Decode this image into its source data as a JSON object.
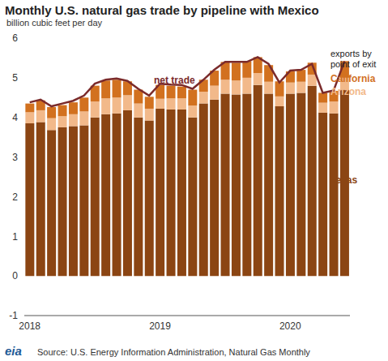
{
  "chart_data": {
    "type": "bar",
    "title": "Monthly U.S. natural gas trade by pipeline with Mexico",
    "subtitle": "billion cubic feet per day",
    "annotations": [
      "net trade",
      "exports by point of exit"
    ],
    "source": "Source: U.S. Energy Information Administration, Natural Gas Monthly",
    "logo": "eia",
    "stacked": true,
    "grid": false,
    "categories": [
      "2018",
      null,
      null,
      null,
      null,
      null,
      null,
      null,
      null,
      null,
      null,
      null,
      "2019",
      null,
      null,
      null,
      null,
      null,
      null,
      null,
      null,
      null,
      null,
      null,
      "2020",
      null,
      null,
      null,
      null,
      null
    ],
    "series": [
      {
        "name": "Texas",
        "color": "#8b4513",
        "type": "bar",
        "values": [
          3.85,
          3.88,
          3.68,
          3.75,
          3.78,
          3.8,
          4.0,
          4.08,
          4.1,
          4.18,
          4.0,
          3.92,
          4.22,
          4.2,
          4.2,
          4.0,
          4.35,
          4.45,
          4.6,
          4.58,
          4.6,
          4.82,
          4.6,
          4.28,
          4.6,
          4.62,
          4.8,
          4.12,
          4.1,
          4.7
        ]
      },
      {
        "name": "Arizona",
        "color": "#f2b98a",
        "type": "bar",
        "values": [
          0.28,
          0.3,
          0.3,
          0.28,
          0.3,
          0.35,
          0.4,
          0.4,
          0.4,
          0.38,
          0.35,
          0.3,
          0.25,
          0.28,
          0.28,
          0.3,
          0.3,
          0.35,
          0.35,
          0.35,
          0.4,
          0.3,
          0.3,
          0.25,
          0.28,
          0.28,
          0.28,
          0.25,
          0.3,
          0.3
        ]
      },
      {
        "name": "California",
        "color": "#d2711f",
        "type": "bar",
        "values": [
          0.22,
          0.25,
          0.28,
          0.28,
          0.3,
          0.35,
          0.4,
          0.45,
          0.45,
          0.35,
          0.35,
          0.3,
          0.35,
          0.32,
          0.3,
          0.4,
          0.3,
          0.38,
          0.45,
          0.45,
          0.42,
          0.4,
          0.42,
          0.38,
          0.28,
          0.3,
          0.3,
          0.25,
          0.27,
          0.42
        ]
      },
      {
        "name": "net trade",
        "color": "#7b2b2b",
        "type": "line",
        "values": [
          4.38,
          4.45,
          4.28,
          4.35,
          4.42,
          4.55,
          4.85,
          4.95,
          4.98,
          4.92,
          4.72,
          4.55,
          4.85,
          4.83,
          4.82,
          4.72,
          4.95,
          5.2,
          5.4,
          5.4,
          5.4,
          5.52,
          5.35,
          4.88,
          5.18,
          5.2,
          5.35,
          4.62,
          4.68,
          5.42
        ]
      }
    ],
    "ylim": [
      -1,
      6
    ],
    "yticks": [
      -1,
      0,
      1,
      2,
      3,
      4,
      5,
      6
    ]
  }
}
